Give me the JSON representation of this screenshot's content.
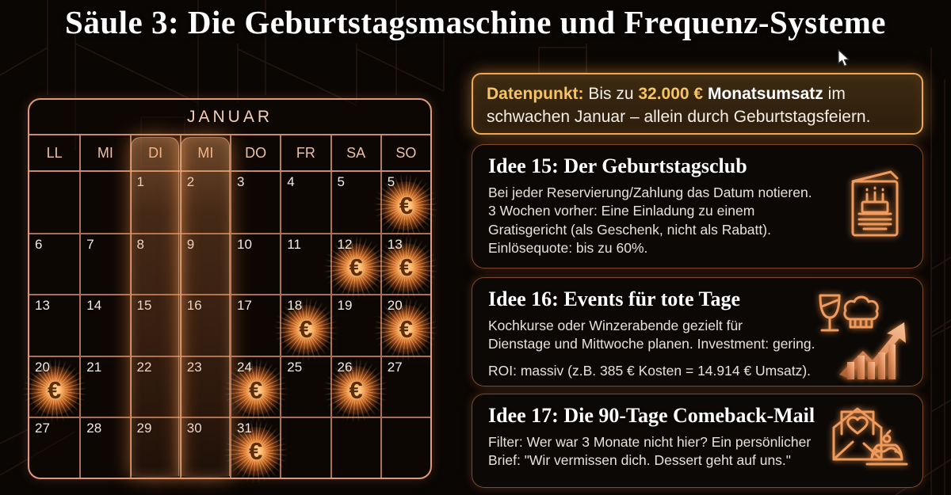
{
  "title": "Säule 3: Die Geburtstagsmaschine und Frequenz-Systeme",
  "accent_colors": {
    "gold": "#f6c464",
    "orange_glow": "#ff9e4a",
    "border_salmon": "#dd9a78"
  },
  "calendar": {
    "month": "JANUAR",
    "day_headers": [
      "LL",
      "MI",
      "DI",
      "MI",
      "DO",
      "FR",
      "SA",
      "SO"
    ],
    "highlighted_day_columns": [
      "DI",
      "MI"
    ],
    "euro_symbol": "€",
    "weeks": [
      [
        "",
        "",
        "1",
        "2",
        "3",
        "4",
        "5",
        "5€"
      ],
      [
        "6",
        "7",
        "8",
        "9",
        "10",
        "11",
        "12€",
        "13€"
      ],
      [
        "13",
        "14",
        "15",
        "16",
        "17",
        "18€",
        "19",
        "20€"
      ],
      [
        "20€",
        "21",
        "22",
        "23",
        "24€",
        "25",
        "26€",
        "27"
      ],
      [
        "27",
        "28",
        "29",
        "30",
        "31€",
        "",
        "",
        ""
      ]
    ]
  },
  "datapoint": {
    "segments": [
      {
        "text": "Datenpunkt: ",
        "style": "gold"
      },
      {
        "text": "Bis zu ",
        "style": "normal"
      },
      {
        "text": "32.000 €",
        "style": "gold"
      },
      {
        "text": " ",
        "style": "normal"
      },
      {
        "text": "Monatsumsatz",
        "style": "boldwhite"
      },
      {
        "text": " im schwachen Januar – allein durch Geburtstagsfeiern.",
        "style": "normal"
      }
    ]
  },
  "ideas": [
    {
      "title": "Idee 15: Der Geburtstagsclub",
      "body": [
        "Bei jeder Reservierung/Zahlung das Datum notieren.",
        "3 Wochen vorher: Eine Einladung zu einem",
        "Gratisgericht (als Geschenk, nicht als Rabatt).",
        "Einlösequote: bis zu 60%."
      ],
      "icon": "birthday-card-icon"
    },
    {
      "title": "Idee 16: Events für tote Tage",
      "body": [
        "Kochkurse oder Winzerabende gezielt für",
        "Dienstage und Mittwoche planen. Investment: gering."
      ],
      "roi": "ROI: massiv (z.B. 385 € Kosten = 14.914 € Umsatz).",
      "icon": "wine-chef-growth-icon"
    },
    {
      "title": "Idee 17: Die 90-Tage Comeback-Mail",
      "body": [
        "Filter: Wer war 3 Monate nicht hier? Ein persönlicher",
        "Brief: \"Wir vermissen dich. Dessert geht auf uns.\""
      ],
      "icon": "comeback-mail-icon"
    }
  ]
}
